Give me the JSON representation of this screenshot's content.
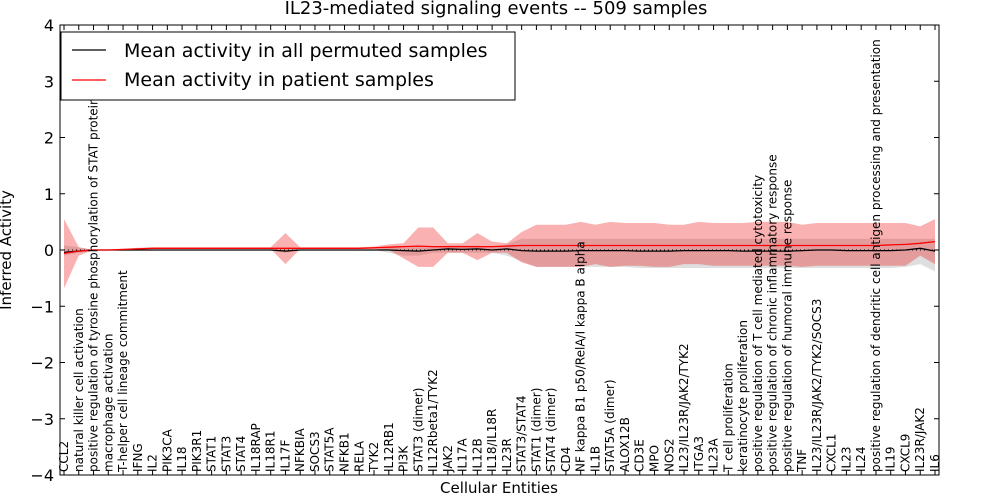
{
  "chart_data": {
    "type": "line",
    "title": "IL23-mediated signaling events -- 509 samples",
    "xlabel": "Cellular Entities",
    "ylabel": "Inferred Activity",
    "ylim": [
      -4,
      4
    ],
    "yticks": [
      -4,
      -3,
      -2,
      -1,
      0,
      1,
      2,
      3,
      4
    ],
    "ytick_labels": [
      "−4",
      "−3",
      "−2",
      "−1",
      "0",
      "1",
      "2",
      "3",
      "4"
    ],
    "grid": false,
    "legend_position": "top-left",
    "categories": [
      "CCL2",
      "natural killer cell activation",
      "positive regulation of tyrosine phosphorylation of STAT protein",
      "macrophage activation",
      "T-helper cell lineage commitment",
      "IFNG",
      "IL2",
      "PIK3CA",
      "IL18",
      "PIK3R1",
      "STAT1",
      "STAT3",
      "STAT4",
      "IL18RAP",
      "IL18R1",
      "IL17F",
      "NFKBIA",
      "SOCS3",
      "STAT5A",
      "NFKB1",
      "RELA",
      "TYK2",
      "IL12RB1",
      "PI3K",
      "STAT3 (dimer)",
      "IL12Rbeta1/TYK2",
      "JAK2",
      "IL17A",
      "IL12B",
      "IL18/IL18R",
      "IL23R",
      "STAT3/STAT4",
      "STAT1 (dimer)",
      "STAT4 (dimer)",
      "CD4",
      "NF kappa B1 p50/RelA/I kappa B alpha",
      "IL1B",
      "STAT5A (dimer)",
      "ALOX12B",
      "CD3E",
      "MPO",
      "NOS2",
      "IL23/IL23R/JAK2/TYK2",
      "ITGA3",
      "IL23A",
      "T cell proliferation",
      "keratinocyte proliferation",
      "positive regulation of T cell mediated cytotoxicity",
      "positive regulation of chronic inflammatory response",
      "positive regulation of humoral immune response",
      "TNF",
      "IL23/IL23R/JAK2/TYK2/SOCS3",
      "CXCL1",
      "IL23",
      "IL24",
      "positive regulation of dendritic cell antigen processing and presentation",
      "IL19",
      "CXCL9",
      "IL23R/JAK2",
      "IL6"
    ],
    "series": [
      {
        "name": "Mean activity in all permuted samples",
        "color": "#000000",
        "values": [
          -0.04,
          -0.02,
          0.0,
          0.0,
          0.0,
          0.0,
          0.0,
          0.0,
          0.0,
          0.0,
          0.0,
          0.0,
          0.0,
          0.0,
          0.0,
          -0.02,
          0.0,
          0.0,
          0.0,
          0.0,
          0.0,
          0.0,
          0.0,
          -0.01,
          -0.02,
          0.0,
          0.02,
          0.01,
          0.02,
          0.0,
          0.02,
          -0.01,
          -0.02,
          -0.02,
          -0.02,
          -0.01,
          -0.01,
          -0.01,
          -0.01,
          -0.02,
          -0.02,
          -0.02,
          -0.01,
          -0.01,
          -0.01,
          -0.01,
          -0.02,
          -0.02,
          -0.02,
          -0.02,
          -0.01,
          0.0,
          0.0,
          -0.01,
          -0.01,
          -0.01,
          -0.01,
          0.0,
          0.03,
          -0.02
        ],
        "band_low": [
          -0.1,
          -0.05,
          0.0,
          0.0,
          0.0,
          0.0,
          0.0,
          0.0,
          0.0,
          0.0,
          0.0,
          0.0,
          0.0,
          0.0,
          0.0,
          -0.05,
          0.0,
          0.0,
          0.0,
          0.0,
          0.0,
          0.0,
          -0.05,
          -0.1,
          -0.1,
          -0.05,
          -0.05,
          -0.05,
          -0.05,
          -0.05,
          -0.1,
          -0.2,
          -0.3,
          -0.3,
          -0.3,
          -0.3,
          -0.3,
          -0.3,
          -0.3,
          -0.32,
          -0.32,
          -0.32,
          -0.32,
          -0.32,
          -0.32,
          -0.32,
          -0.32,
          -0.32,
          -0.32,
          -0.32,
          -0.32,
          -0.32,
          -0.32,
          -0.32,
          -0.32,
          -0.32,
          -0.32,
          -0.3,
          -0.25,
          -0.38
        ],
        "band_high": [
          0.08,
          0.05,
          0.0,
          0.0,
          0.0,
          0.0,
          0.0,
          0.0,
          0.0,
          0.0,
          0.0,
          0.0,
          0.0,
          0.0,
          0.0,
          0.05,
          0.0,
          0.0,
          0.0,
          0.0,
          0.0,
          0.0,
          0.05,
          0.05,
          0.05,
          0.05,
          0.08,
          0.08,
          0.08,
          0.05,
          0.1,
          0.2,
          0.2,
          0.2,
          0.2,
          0.2,
          0.2,
          0.2,
          0.2,
          0.2,
          0.2,
          0.2,
          0.2,
          0.2,
          0.2,
          0.2,
          0.2,
          0.2,
          0.2,
          0.2,
          0.2,
          0.2,
          0.2,
          0.2,
          0.2,
          0.2,
          0.2,
          0.2,
          0.2,
          0.2
        ]
      },
      {
        "name": "Mean activity in patient samples",
        "color": "#ff0000",
        "values": [
          -0.06,
          -0.02,
          0.0,
          0.0,
          0.01,
          0.02,
          0.03,
          0.03,
          0.03,
          0.03,
          0.03,
          0.03,
          0.03,
          0.03,
          0.03,
          0.03,
          0.03,
          0.03,
          0.03,
          0.03,
          0.03,
          0.04,
          0.05,
          0.06,
          0.07,
          0.06,
          0.06,
          0.06,
          0.06,
          0.06,
          0.07,
          0.08,
          0.08,
          0.08,
          0.08,
          0.08,
          0.08,
          0.08,
          0.08,
          0.08,
          0.08,
          0.08,
          0.08,
          0.08,
          0.08,
          0.08,
          0.08,
          0.08,
          0.08,
          0.08,
          0.08,
          0.08,
          0.08,
          0.08,
          0.08,
          0.08,
          0.09,
          0.1,
          0.12,
          0.15
        ],
        "band_low": [
          -0.68,
          -0.1,
          0.0,
          0.0,
          0.0,
          0.0,
          0.02,
          0.02,
          0.02,
          0.02,
          0.02,
          0.02,
          0.02,
          0.02,
          0.02,
          -0.25,
          0.02,
          0.02,
          0.02,
          0.02,
          0.02,
          0.02,
          0.0,
          -0.15,
          -0.3,
          -0.3,
          -0.05,
          -0.05,
          -0.18,
          -0.05,
          -0.05,
          -0.22,
          -0.3,
          -0.3,
          -0.3,
          -0.3,
          -0.25,
          -0.3,
          -0.28,
          -0.28,
          -0.3,
          -0.3,
          -0.25,
          -0.25,
          -0.28,
          -0.28,
          -0.28,
          -0.28,
          -0.28,
          -0.28,
          -0.3,
          -0.28,
          -0.28,
          -0.28,
          -0.28,
          -0.28,
          -0.28,
          -0.28,
          -0.1,
          -0.25
        ],
        "band_high": [
          0.55,
          0.05,
          0.0,
          0.0,
          0.02,
          0.04,
          0.05,
          0.05,
          0.05,
          0.05,
          0.05,
          0.05,
          0.05,
          0.05,
          0.05,
          0.3,
          0.05,
          0.05,
          0.05,
          0.05,
          0.05,
          0.06,
          0.1,
          0.12,
          0.4,
          0.4,
          0.12,
          0.12,
          0.3,
          0.15,
          0.12,
          0.32,
          0.45,
          0.45,
          0.45,
          0.5,
          0.45,
          0.5,
          0.48,
          0.48,
          0.48,
          0.45,
          0.45,
          0.5,
          0.48,
          0.48,
          0.48,
          0.5,
          0.5,
          0.5,
          0.45,
          0.48,
          0.48,
          0.48,
          0.48,
          0.48,
          0.48,
          0.48,
          0.42,
          0.55
        ]
      }
    ]
  }
}
